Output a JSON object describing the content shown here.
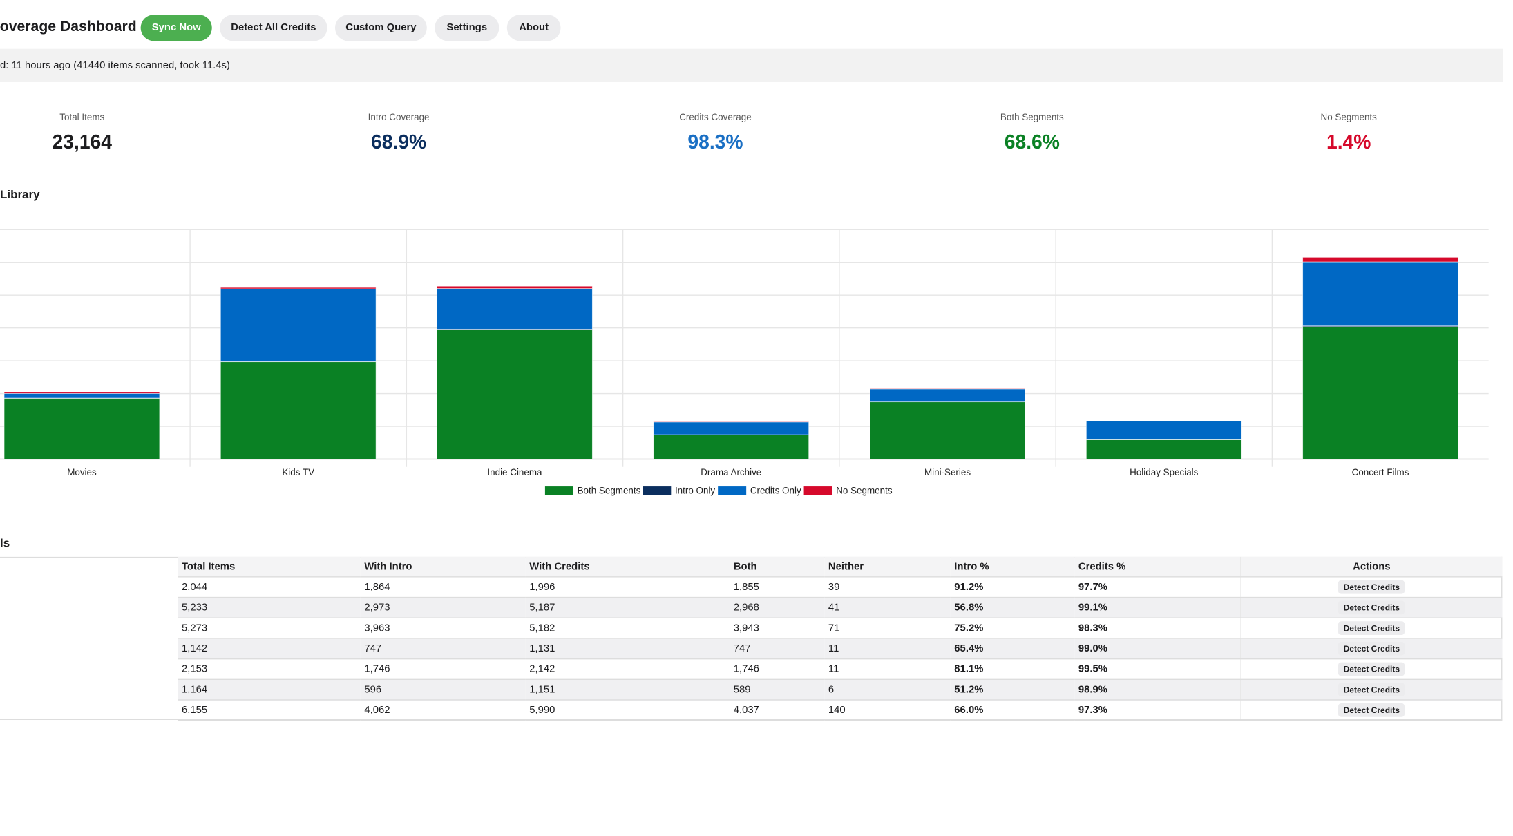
{
  "header": {
    "title": "Coverage Dashboard",
    "buttons": [
      "Sync Now",
      "Detect All Credits",
      "Custom Query",
      "Settings",
      "About"
    ]
  },
  "status": "d: 11 hours ago (41440 items scanned, took 11.4s)",
  "stats": [
    {
      "label": "Total Items",
      "value": "23,164",
      "color": "#1d1d1f"
    },
    {
      "label": "Intro Coverage",
      "value": "68.9%",
      "color": "#0b2e5e"
    },
    {
      "label": "Credits Coverage",
      "value": "98.3%",
      "color": "#1a6fc4"
    },
    {
      "label": "Both Segments",
      "value": "68.6%",
      "color": "#0a8124"
    },
    {
      "label": "No Segments",
      "value": "1.4%",
      "color": "#d6092b"
    }
  ],
  "chart_data": {
    "type": "bar",
    "stacked": true,
    "title": "Library",
    "categories": [
      "Movies",
      "Kids TV",
      "Indie Cinema",
      "Drama Archive",
      "Mini-Series",
      "Holiday Specials",
      "Concert Films"
    ],
    "series": [
      {
        "name": "Both Segments",
        "color": "#0a8124",
        "values": [
          1855,
          2968,
          3943,
          747,
          1746,
          589,
          4037
        ]
      },
      {
        "name": "Intro Only",
        "color": "#0b2e5e",
        "values": [
          9,
          5,
          20,
          0,
          0,
          7,
          25
        ]
      },
      {
        "name": "Credits Only",
        "color": "#0068c4",
        "values": [
          141,
          2219,
          1239,
          384,
          396,
          562,
          1953
        ]
      },
      {
        "name": "No Segments",
        "color": "#d6092b",
        "values": [
          39,
          41,
          71,
          11,
          11,
          6,
          140
        ]
      }
    ],
    "ylim": [
      0,
      7000
    ],
    "yticks": [
      0,
      1000,
      2000,
      3000,
      4000,
      5000,
      6000,
      7000
    ],
    "grid": true,
    "legend": "bottom"
  },
  "table": {
    "title": "ls",
    "columns": [
      "Total Items",
      "With Intro",
      "With Credits",
      "Both",
      "Neither",
      "Intro %",
      "Credits %",
      "Actions"
    ],
    "rows": [
      [
        "2,044",
        "1,864",
        "1,996",
        "1,855",
        "39",
        "91.2%",
        "97.7%",
        "Detect Credits"
      ],
      [
        "5,233",
        "2,973",
        "5,187",
        "2,968",
        "41",
        "56.8%",
        "99.1%",
        "Detect Credits"
      ],
      [
        "5,273",
        "3,963",
        "5,182",
        "3,943",
        "71",
        "75.2%",
        "98.3%",
        "Detect Credits"
      ],
      [
        "1,142",
        "747",
        "1,131",
        "747",
        "11",
        "65.4%",
        "99.0%",
        "Detect Credits"
      ],
      [
        "2,153",
        "1,746",
        "2,142",
        "1,746",
        "11",
        "81.1%",
        "99.5%",
        "Detect Credits"
      ],
      [
        "1,164",
        "596",
        "1,151",
        "589",
        "6",
        "51.2%",
        "98.9%",
        "Detect Credits"
      ],
      [
        "6,155",
        "4,062",
        "5,990",
        "4,037",
        "140",
        "66.0%",
        "97.3%",
        "Detect Credits"
      ]
    ]
  }
}
